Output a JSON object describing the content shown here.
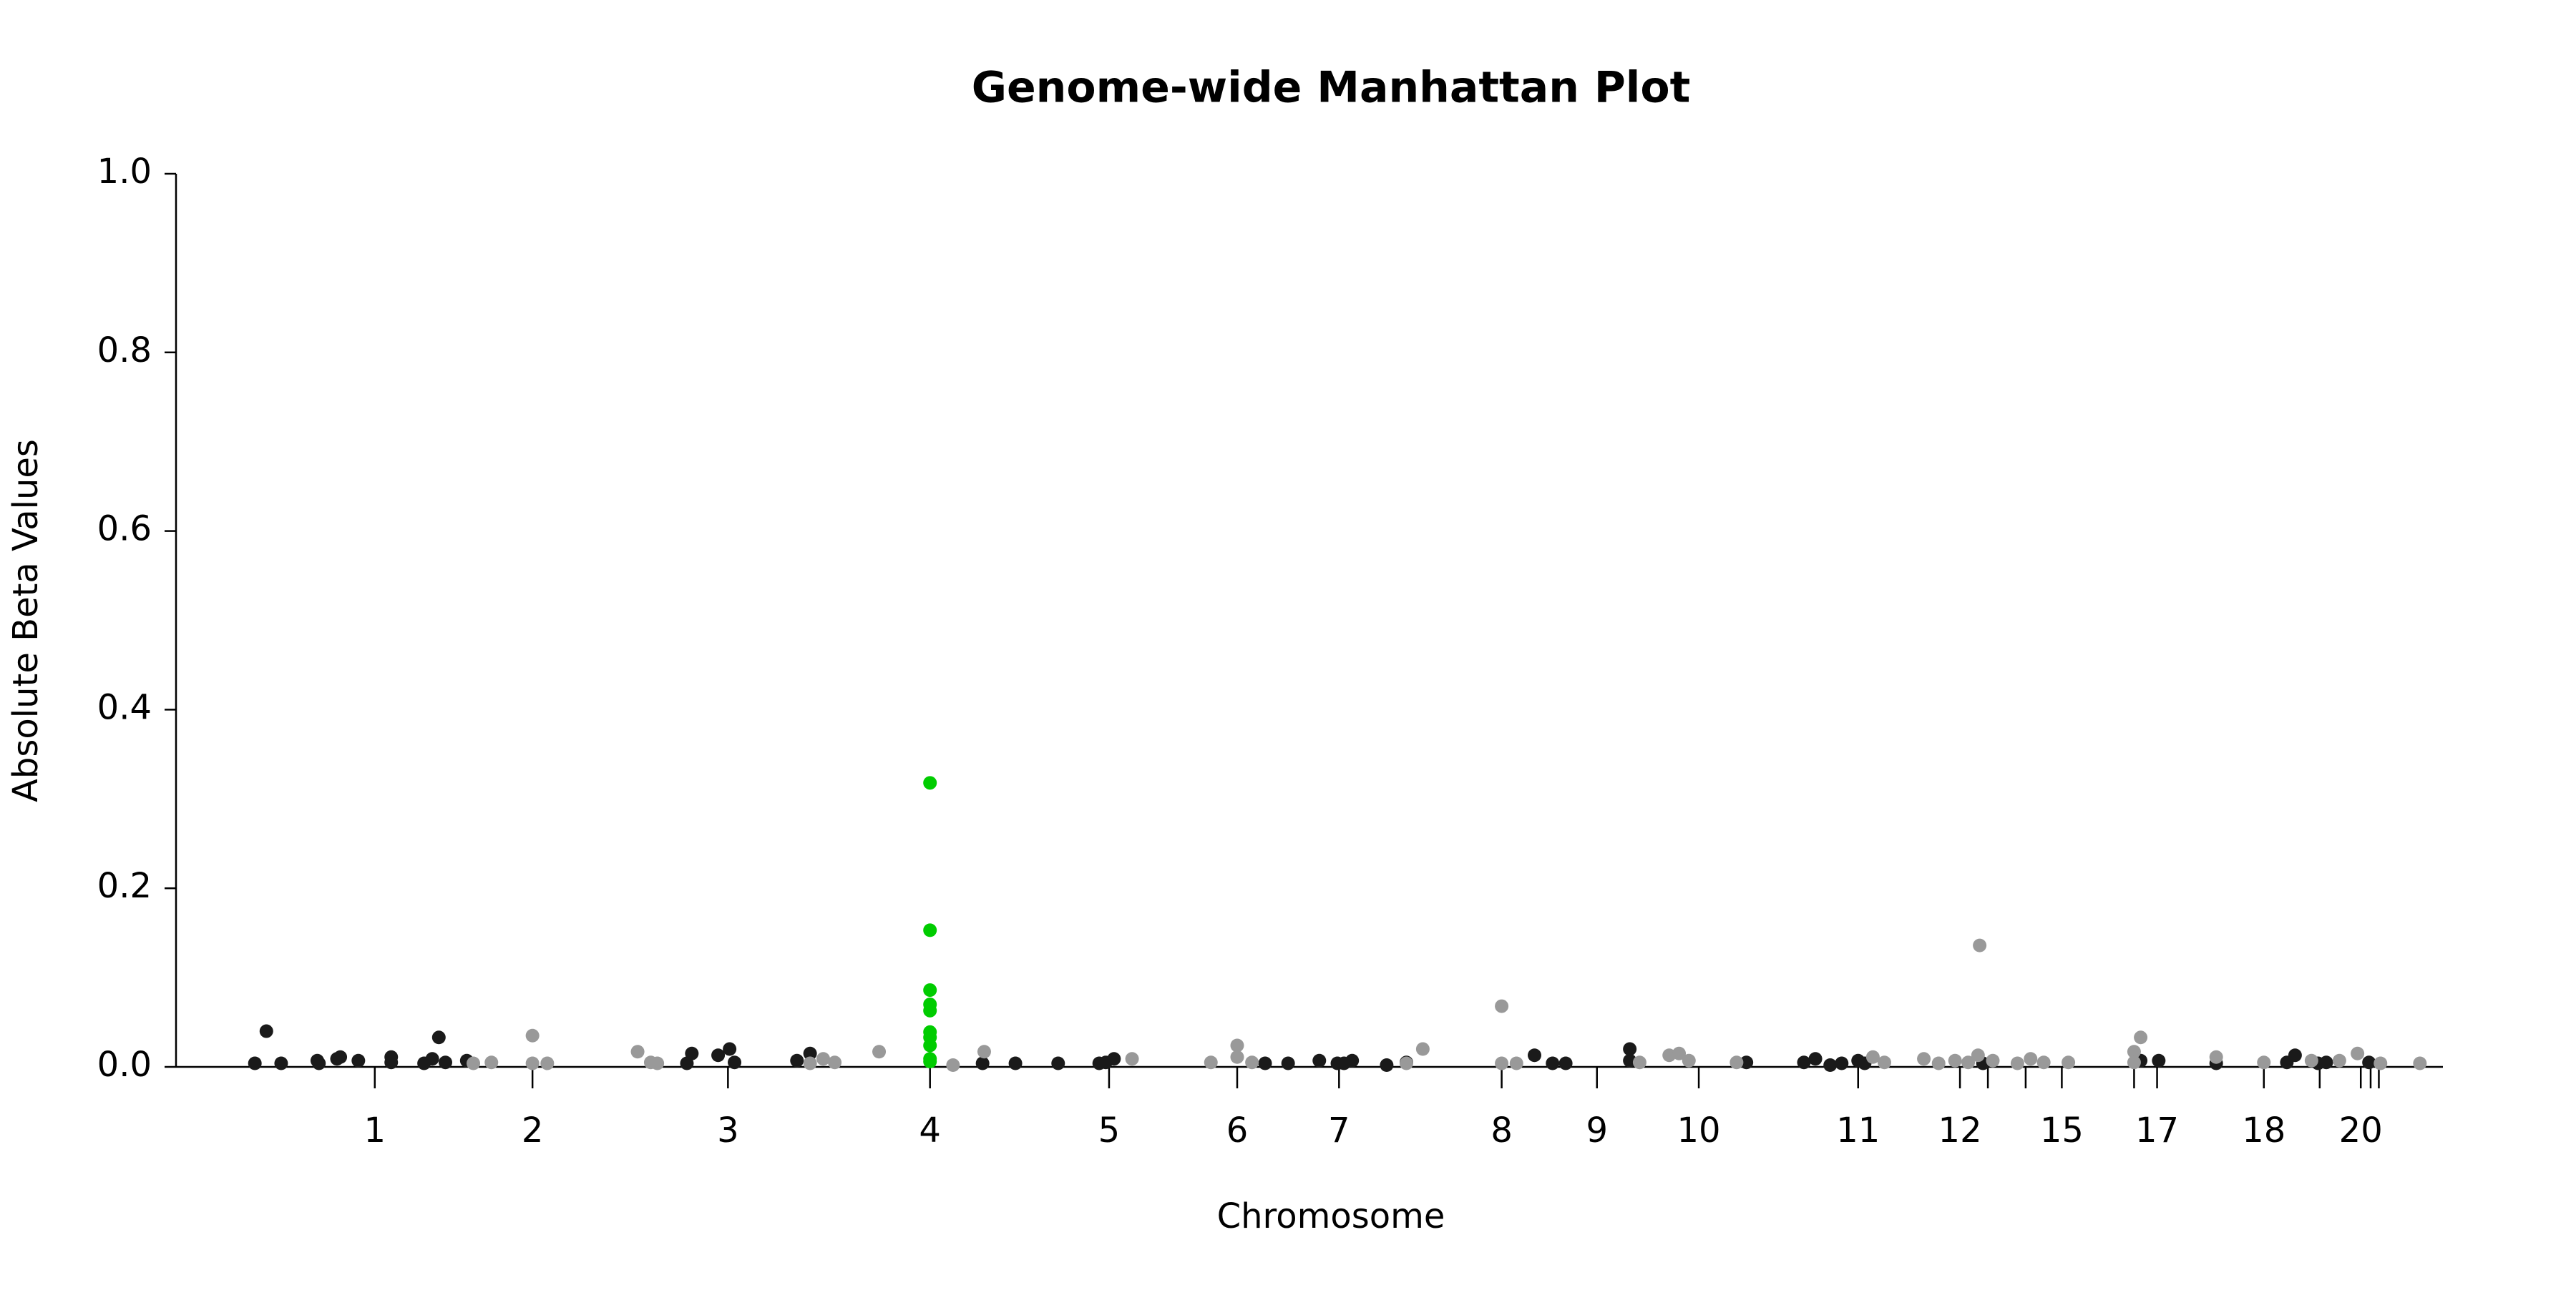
{
  "chart_data": {
    "type": "scatter",
    "title": "Genome-wide Manhattan Plot",
    "xlabel": "Chromosome",
    "ylabel": "Absolute Beta Values",
    "xlim": [
      0,
      1380
    ],
    "ylim": [
      0,
      1
    ],
    "yticks": [
      {
        "value": 0,
        "label": "0.0"
      },
      0.2,
      0.4,
      0.6,
      0.8,
      {
        "value": 1,
        "label": "1.0"
      }
    ],
    "xticks": [
      {
        "value": 121,
        "label": "1"
      },
      {
        "value": 217,
        "label": "2"
      },
      {
        "value": 336,
        "label": "3"
      },
      {
        "value": 459,
        "label": "4"
      },
      {
        "value": 568,
        "label": "5"
      },
      {
        "value": 646,
        "label": "6"
      },
      {
        "value": 708,
        "label": "7"
      },
      {
        "value": 807,
        "label": "8"
      },
      {
        "value": 865,
        "label": "9"
      },
      {
        "value": 927,
        "label": "10"
      },
      {
        "value": 1024,
        "label": "11"
      },
      {
        "value": 1086,
        "label": "12"
      },
      {
        "value": 1103,
        "label": null
      },
      {
        "value": 1126,
        "label": null
      },
      {
        "value": 1148,
        "label": "15"
      },
      {
        "value": 1192,
        "label": null
      },
      {
        "value": 1206,
        "label": "17"
      },
      {
        "value": 1271,
        "label": "18"
      },
      {
        "value": 1305,
        "label": null
      },
      {
        "value": 1330,
        "label": "20"
      },
      {
        "value": 1336,
        "label": null
      },
      {
        "value": 1341,
        "label": null
      }
    ],
    "series": [
      {
        "color": "#1a1a1a",
        "x": [
          48,
          55,
          64,
          86,
          87,
          98,
          100,
          111,
          131,
          131,
          151,
          156,
          160,
          164,
          177,
          311,
          314,
          330,
          337,
          340,
          378,
          386,
          491,
          511,
          537,
          562,
          566,
          571,
          663,
          677,
          696,
          707,
          711,
          716,
          737,
          749,
          827,
          838,
          846,
          885,
          885,
          956,
          991,
          998,
          1007,
          1014,
          1024,
          1028,
          1100,
          1196,
          1207,
          1242,
          1285,
          1290,
          1304,
          1309,
          1335
        ],
        "values": [
          0.004,
          0.04,
          0.004,
          0.007,
          0.004,
          0.009,
          0.011,
          0.007,
          0.011,
          0.005,
          0.004,
          0.009,
          0.033,
          0.005,
          0.007,
          0.004,
          0.015,
          0.013,
          0.02,
          0.005,
          0.007,
          0.015,
          0.004,
          0.004,
          0.004,
          0.004,
          0.005,
          0.009,
          0.004,
          0.004,
          0.007,
          0.004,
          0.004,
          0.007,
          0.002,
          0.005,
          0.013,
          0.004,
          0.004,
          0.02,
          0.007,
          0.005,
          0.005,
          0.009,
          0.002,
          0.004,
          0.007,
          0.004,
          0.004,
          0.007,
          0.007,
          0.004,
          0.005,
          0.013,
          0.004,
          0.005,
          0.005
        ]
      },
      {
        "color": "#999999",
        "x": [
          181,
          192,
          217,
          217,
          226,
          281,
          289,
          293,
          386,
          394,
          401,
          428,
          473,
          492,
          582,
          630,
          646,
          646,
          655,
          749,
          759,
          807,
          807,
          816,
          891,
          909,
          915,
          921,
          950,
          1033,
          1040,
          1064,
          1073,
          1083,
          1091,
          1098,
          1097,
          1106,
          1121,
          1129,
          1137,
          1152,
          1192,
          1196,
          1192,
          1242,
          1271,
          1300,
          1317,
          1328,
          1342,
          1366
        ],
        "values": [
          0.004,
          0.005,
          0.035,
          0.004,
          0.004,
          0.017,
          0.005,
          0.004,
          0.004,
          0.009,
          0.005,
          0.017,
          0.002,
          0.017,
          0.009,
          0.005,
          0.024,
          0.011,
          0.005,
          0.004,
          0.02,
          0.068,
          0.004,
          0.004,
          0.005,
          0.013,
          0.015,
          0.007,
          0.005,
          0.011,
          0.005,
          0.009,
          0.004,
          0.007,
          0.005,
          0.136,
          0.013,
          0.007,
          0.004,
          0.009,
          0.005,
          0.005,
          0.017,
          0.033,
          0.005,
          0.011,
          0.005,
          0.007,
          0.007,
          0.015,
          0.004,
          0.004
        ]
      },
      {
        "color": "#00cc00",
        "x": [
          459,
          459,
          459,
          459,
          459,
          459,
          459,
          459,
          459,
          459
        ],
        "values": [
          0.318,
          0.153,
          0.086,
          0.07,
          0.063,
          0.039,
          0.033,
          0.024,
          0.009,
          0.006
        ]
      }
    ]
  }
}
